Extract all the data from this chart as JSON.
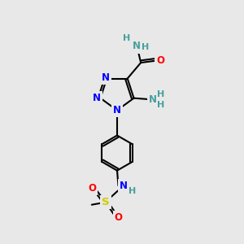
{
  "bg_color": "#e8e8e8",
  "atom_colors": {
    "N": "#0000ff",
    "O": "#ff0000",
    "S": "#cccc00",
    "H": "#4a9e9e",
    "C": "#000000"
  },
  "bond_color": "#000000",
  "bond_lw": 1.5,
  "font_size": 8.5,
  "font_size_h": 8.0
}
